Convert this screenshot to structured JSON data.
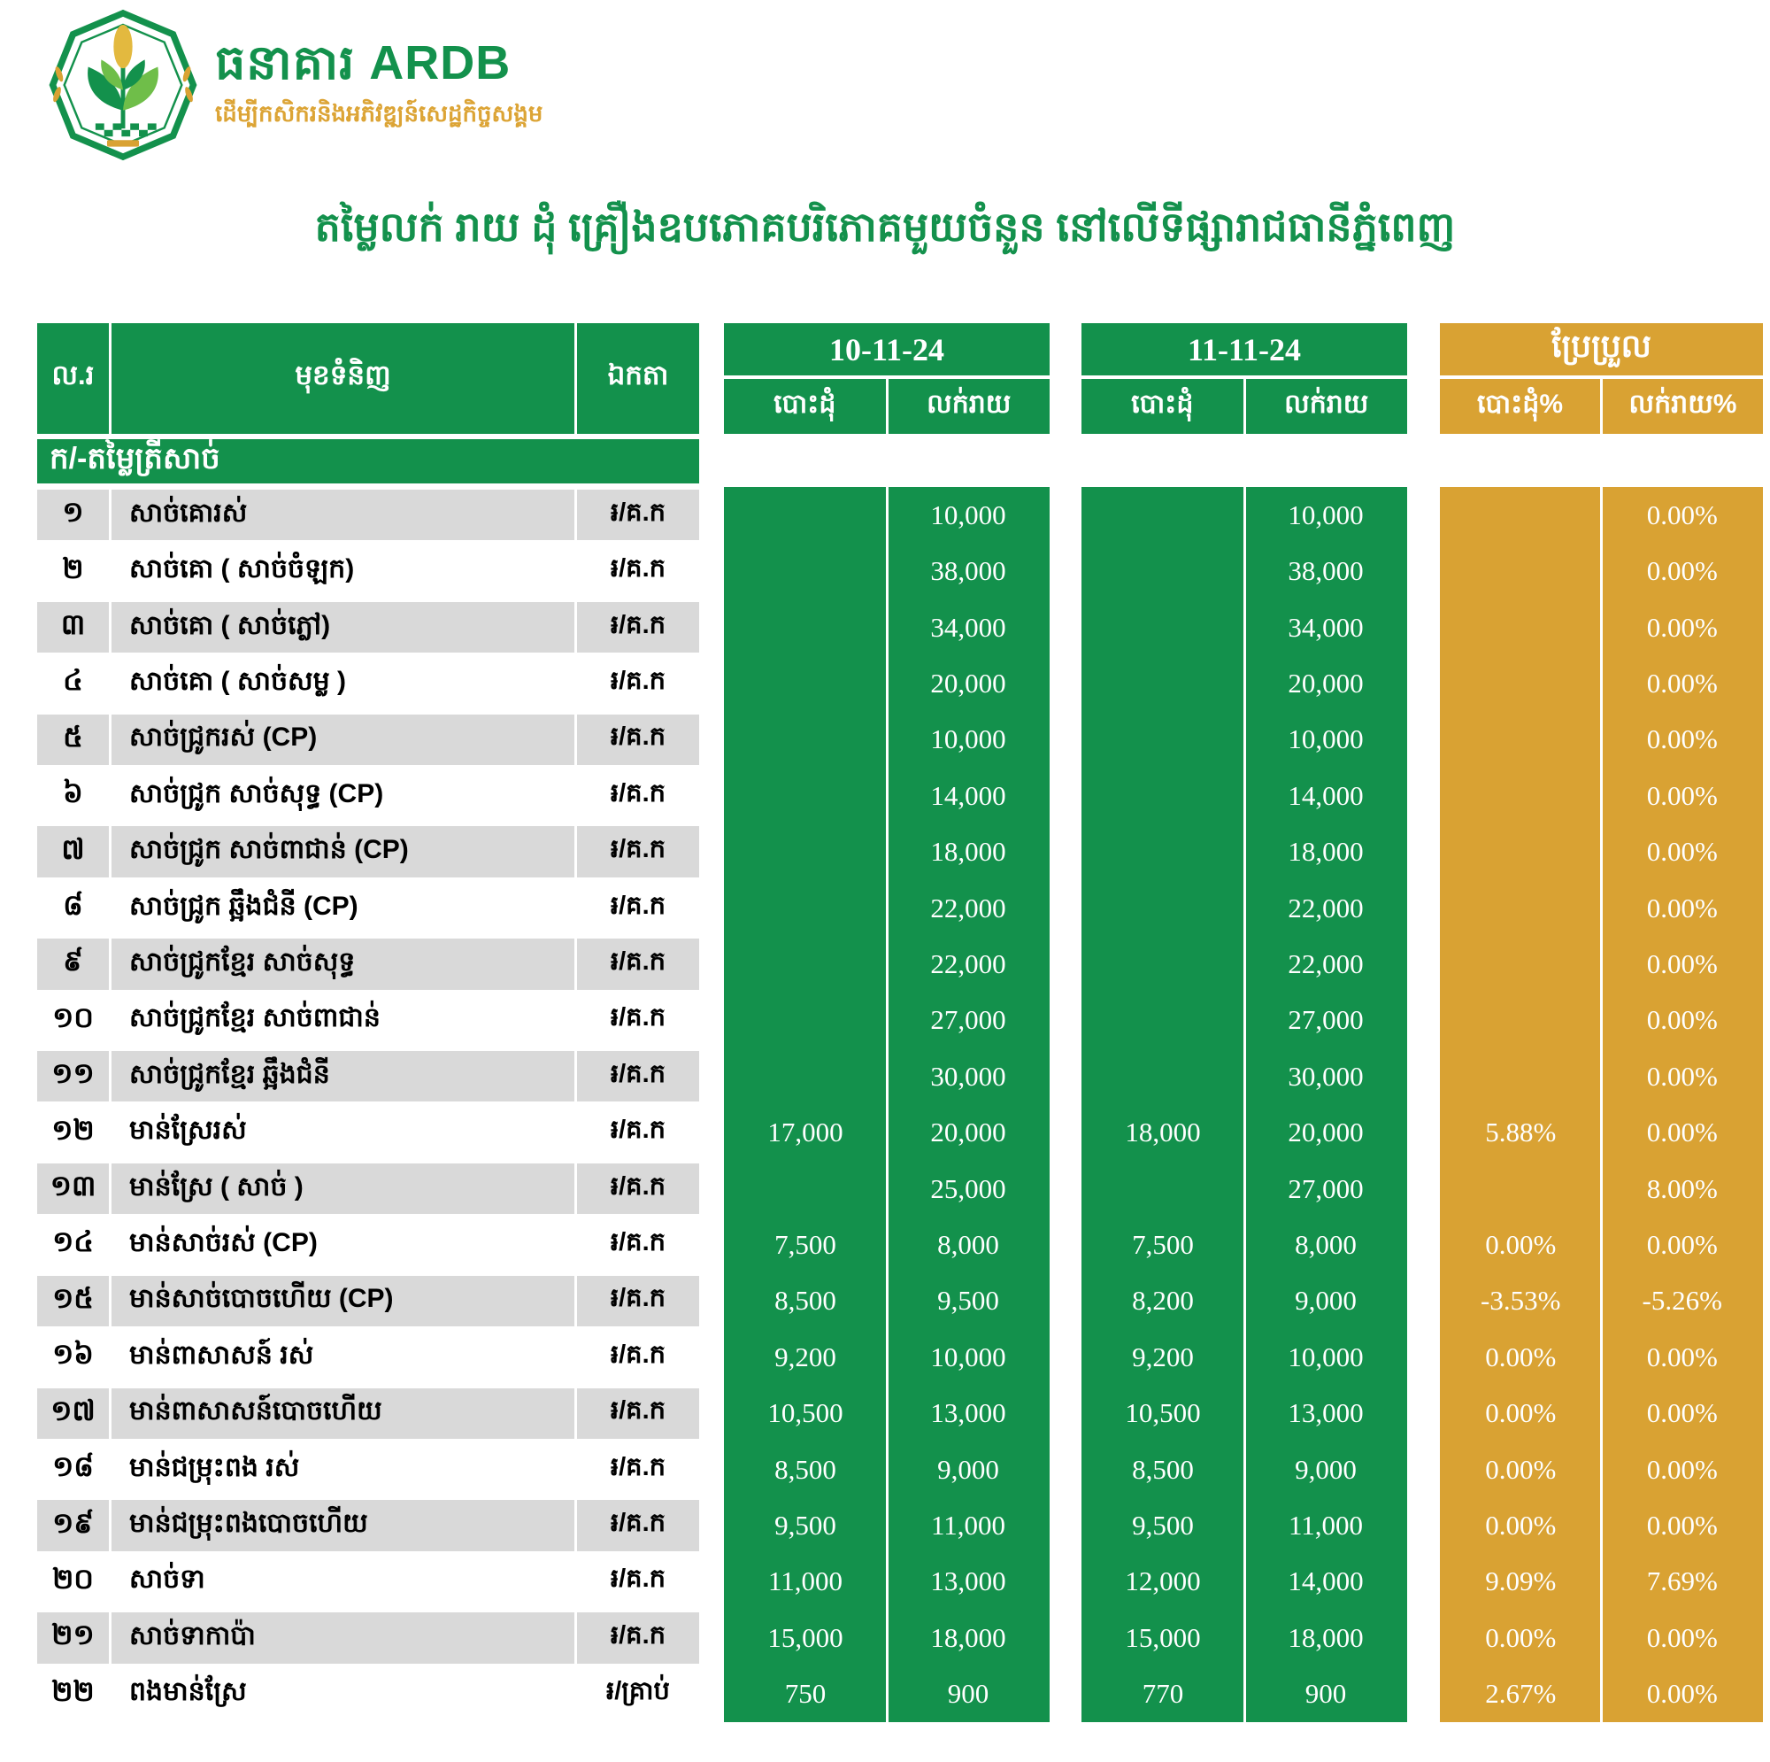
{
  "logo": {
    "bank_name": "ធនាគារ ARDB",
    "tagline": "ដើម្បីកសិករនិងអភិវឌ្ឍន៍សេដ្ឋកិច្ចសង្គម"
  },
  "title": "តម្លៃលក់ រាយ ដុំ គ្រឿងឧបភោគបរិភោគមួយចំនួន នៅលើទីផ្សារាជធានីភ្នំពេញ",
  "colors": {
    "green": "#13914C",
    "gold": "#D9A233",
    "row_stripe": "#D9D9D9",
    "tagline_gold": "#DCA435",
    "text_white": "#FFFFFF",
    "text_black": "#000000"
  },
  "table": {
    "headers": {
      "no": "ល.រ",
      "product": "មុខទំនិញ",
      "unit": "ឯកតា",
      "date1": "10-11-24",
      "date2": "11-11-24",
      "change": "ប្រែប្រួល",
      "wholesale": "បោះដុំ",
      "retail": "លក់រាយ",
      "wholesale_pct": "បោះដុំ%",
      "retail_pct": "លក់រាយ%"
    },
    "section": "ក/-តម្លៃត្រីសាច់",
    "rows": [
      {
        "no": "១",
        "product": "សាច់គោរស់",
        "unit": "៛/គ.ក",
        "d1w": "",
        "d1r": "10,000",
        "d2w": "",
        "d2r": "10,000",
        "cw": "",
        "cr": "0.00%"
      },
      {
        "no": "២",
        "product": "សាច់គោ ( សាច់ចំឡក)",
        "unit": "៛/គ.ក",
        "d1w": "",
        "d1r": "38,000",
        "d2w": "",
        "d2r": "38,000",
        "cw": "",
        "cr": "0.00%"
      },
      {
        "no": "៣",
        "product": "សាច់គោ ( សាច់ភ្លៅ)",
        "unit": "៛/គ.ក",
        "d1w": "",
        "d1r": "34,000",
        "d2w": "",
        "d2r": "34,000",
        "cw": "",
        "cr": "0.00%"
      },
      {
        "no": "៤",
        "product": "សាច់គោ ( សាច់សម្ល )",
        "unit": "៛/គ.ក",
        "d1w": "",
        "d1r": "20,000",
        "d2w": "",
        "d2r": "20,000",
        "cw": "",
        "cr": "0.00%"
      },
      {
        "no": "៥",
        "product": "សាច់ជ្រូករស់ (CP)",
        "unit": "៛/គ.ក",
        "d1w": "",
        "d1r": "10,000",
        "d2w": "",
        "d2r": "10,000",
        "cw": "",
        "cr": "0.00%"
      },
      {
        "no": "៦",
        "product": "សាច់ជ្រូក សាច់សុទ្ធ (CP)",
        "unit": "៛/គ.ក",
        "d1w": "",
        "d1r": "14,000",
        "d2w": "",
        "d2r": "14,000",
        "cw": "",
        "cr": "0.00%"
      },
      {
        "no": "៧",
        "product": "សាច់ជ្រូក សាច់ពាជាន់ (CP)",
        "unit": "៛/គ.ក",
        "d1w": "",
        "d1r": "18,000",
        "d2w": "",
        "d2r": "18,000",
        "cw": "",
        "cr": "0.00%"
      },
      {
        "no": "៨",
        "product": "សាច់ជ្រូក ឆ្អឹងជំនី (CP)",
        "unit": "៛/គ.ក",
        "d1w": "",
        "d1r": "22,000",
        "d2w": "",
        "d2r": "22,000",
        "cw": "",
        "cr": "0.00%"
      },
      {
        "no": "៩",
        "product": "សាច់ជ្រូកខ្មែរ សាច់សុទ្ធ",
        "unit": "៛/គ.ក",
        "d1w": "",
        "d1r": "22,000",
        "d2w": "",
        "d2r": "22,000",
        "cw": "",
        "cr": "0.00%"
      },
      {
        "no": "១០",
        "product": "សាច់ជ្រូកខ្មែរ សាច់ពាជាន់",
        "unit": "៛/គ.ក",
        "d1w": "",
        "d1r": "27,000",
        "d2w": "",
        "d2r": "27,000",
        "cw": "",
        "cr": "0.00%"
      },
      {
        "no": "១១",
        "product": "សាច់ជ្រូកខ្មែរ ឆ្អឹងជំនី",
        "unit": "៛/គ.ក",
        "d1w": "",
        "d1r": "30,000",
        "d2w": "",
        "d2r": "30,000",
        "cw": "",
        "cr": "0.00%"
      },
      {
        "no": "១២",
        "product": "មាន់ស្រែរស់",
        "unit": "៛/គ.ក",
        "d1w": "17,000",
        "d1r": "20,000",
        "d2w": "18,000",
        "d2r": "20,000",
        "cw": "5.88%",
        "cr": "0.00%"
      },
      {
        "no": "១៣",
        "product": "មាន់ស្រែ ( សាច់ )",
        "unit": "៛/គ.ក",
        "d1w": "",
        "d1r": "25,000",
        "d2w": "",
        "d2r": "27,000",
        "cw": "",
        "cr": "8.00%"
      },
      {
        "no": "១៤",
        "product": "មាន់សាច់រស់ (CP)",
        "unit": "៛/គ.ក",
        "d1w": "7,500",
        "d1r": "8,000",
        "d2w": "7,500",
        "d2r": "8,000",
        "cw": "0.00%",
        "cr": "0.00%"
      },
      {
        "no": "១៥",
        "product": "មាន់សាច់បោចហើយ (CP)",
        "unit": "៛/គ.ក",
        "d1w": "8,500",
        "d1r": "9,500",
        "d2w": "8,200",
        "d2r": "9,000",
        "cw": "-3.53%",
        "cr": "-5.26%"
      },
      {
        "no": "១៦",
        "product": "មាន់ពាសាសន៍ រស់",
        "unit": "៛/គ.ក",
        "d1w": "9,200",
        "d1r": "10,000",
        "d2w": "9,200",
        "d2r": "10,000",
        "cw": "0.00%",
        "cr": "0.00%"
      },
      {
        "no": "១៧",
        "product": "មាន់ពាសាសន៍បោចហើយ",
        "unit": "៛/គ.ក",
        "d1w": "10,500",
        "d1r": "13,000",
        "d2w": "10,500",
        "d2r": "13,000",
        "cw": "0.00%",
        "cr": "0.00%"
      },
      {
        "no": "១៨",
        "product": "មាន់ជម្រុះពង រស់",
        "unit": "៛/គ.ក",
        "d1w": "8,500",
        "d1r": "9,000",
        "d2w": "8,500",
        "d2r": "9,000",
        "cw": "0.00%",
        "cr": "0.00%"
      },
      {
        "no": "១៩",
        "product": "មាន់ជម្រុះពងបោចហើយ",
        "unit": "៛/គ.ក",
        "d1w": "9,500",
        "d1r": "11,000",
        "d2w": "9,500",
        "d2r": "11,000",
        "cw": "0.00%",
        "cr": "0.00%"
      },
      {
        "no": "២០",
        "product": "សាច់ទា",
        "unit": "៛/គ.ក",
        "d1w": "11,000",
        "d1r": "13,000",
        "d2w": "12,000",
        "d2r": "14,000",
        "cw": "9.09%",
        "cr": "7.69%"
      },
      {
        "no": "២១",
        "product": "សាច់ទាកាប៉ា",
        "unit": "៛/គ.ក",
        "d1w": "15,000",
        "d1r": "18,000",
        "d2w": "15,000",
        "d2r": "18,000",
        "cw": "0.00%",
        "cr": "0.00%"
      },
      {
        "no": "២២",
        "product": "ពងមាន់ស្រែ",
        "unit": "៛/គ្រាប់",
        "d1w": "750",
        "d1r": "900",
        "d2w": "770",
        "d2r": "900",
        "cw": "2.67%",
        "cr": "0.00%"
      }
    ]
  }
}
